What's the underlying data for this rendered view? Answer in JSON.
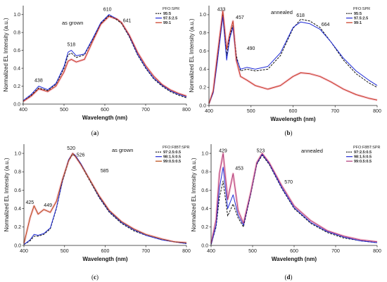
{
  "chart_data": [
    {
      "type": "line",
      "panel": "(a)",
      "condition": "as grown",
      "xlabel": "Wavelength (nm)",
      "ylabel": "Normalized EL Intensity (a.u.)",
      "xlim": [
        400,
        800
      ],
      "ylim": [
        0,
        1.1
      ],
      "xticks": [
        400,
        500,
        600,
        700,
        800
      ],
      "yticks": [
        0.0,
        0.2,
        0.4,
        0.6,
        0.8,
        1.0
      ],
      "legend": {
        "title": "PFO:SPR",
        "position": "top-right",
        "entries": [
          "95:5",
          "97.5:2.5",
          "99:1"
        ]
      },
      "annotations": [
        {
          "text": "438",
          "x": 438,
          "y": 0.2
        },
        {
          "text": "518",
          "x": 518,
          "y": 0.6
        },
        {
          "text": "610",
          "x": 610,
          "y": 1.0
        },
        {
          "text": "641",
          "x": 641,
          "y": 0.9
        }
      ],
      "series": [
        {
          "name": "95:5",
          "color": "#111111",
          "dash": "3,1.5",
          "x": [
            400,
            420,
            438,
            460,
            480,
            500,
            510,
            518,
            530,
            550,
            570,
            590,
            610,
            630,
            641,
            660,
            680,
            700,
            720,
            740,
            760,
            780,
            800
          ],
          "y": [
            0.03,
            0.1,
            0.18,
            0.15,
            0.22,
            0.4,
            0.55,
            0.57,
            0.52,
            0.55,
            0.72,
            0.9,
            0.99,
            0.94,
            0.9,
            0.75,
            0.55,
            0.4,
            0.28,
            0.2,
            0.14,
            0.1,
            0.07
          ]
        },
        {
          "name": "97.5:2.5",
          "color": "#1f2bd6",
          "dash": "",
          "x": [
            400,
            420,
            438,
            460,
            480,
            500,
            510,
            518,
            530,
            550,
            570,
            590,
            610,
            630,
            641,
            660,
            680,
            700,
            720,
            740,
            760,
            780,
            800
          ],
          "y": [
            0.04,
            0.11,
            0.2,
            0.16,
            0.23,
            0.42,
            0.58,
            0.6,
            0.54,
            0.56,
            0.73,
            0.91,
            1.0,
            0.95,
            0.91,
            0.76,
            0.56,
            0.41,
            0.29,
            0.21,
            0.15,
            0.11,
            0.08
          ]
        },
        {
          "name": "99:1",
          "color": "#c8361e",
          "dash": "",
          "x": [
            400,
            420,
            438,
            460,
            480,
            500,
            510,
            518,
            530,
            550,
            570,
            590,
            610,
            630,
            641,
            660,
            680,
            700,
            720,
            740,
            760,
            780,
            800
          ],
          "y": [
            0.03,
            0.09,
            0.17,
            0.14,
            0.2,
            0.36,
            0.48,
            0.5,
            0.47,
            0.5,
            0.7,
            0.89,
            0.98,
            0.95,
            0.91,
            0.77,
            0.58,
            0.43,
            0.31,
            0.22,
            0.16,
            0.12,
            0.09
          ]
        }
      ]
    },
    {
      "type": "line",
      "panel": "(b)",
      "condition": "annealed",
      "xlabel": "Wavelength (nm)",
      "ylabel": "Normalized EL Intensity (a.u.)",
      "xlim": [
        400,
        800
      ],
      "ylim": [
        0,
        1.1
      ],
      "xticks": [
        400,
        500,
        600,
        700,
        800
      ],
      "yticks": [
        0.0,
        0.2,
        0.4,
        0.6,
        0.8,
        1.0
      ],
      "legend": {
        "title": "PFO:SPR",
        "position": "top-right",
        "entries": [
          "95:5",
          "97.5:2.5",
          "99:1"
        ]
      },
      "annotations": [
        {
          "text": "433",
          "x": 433,
          "y": 1.02
        },
        {
          "text": "457",
          "x": 457,
          "y": 0.92
        },
        {
          "text": "490",
          "x": 490,
          "y": 0.55
        },
        {
          "text": "618",
          "x": 618,
          "y": 0.93
        },
        {
          "text": "664",
          "x": 664,
          "y": 0.86
        }
      ],
      "series": [
        {
          "name": "95:5",
          "color": "#111111",
          "dash": "3,1.5",
          "x": [
            400,
            410,
            420,
            433,
            442,
            450,
            457,
            465,
            475,
            490,
            510,
            540,
            570,
            600,
            618,
            640,
            664,
            690,
            720,
            750,
            780,
            800
          ],
          "y": [
            0.02,
            0.15,
            0.5,
            1.0,
            0.55,
            0.78,
            0.88,
            0.55,
            0.38,
            0.4,
            0.38,
            0.4,
            0.55,
            0.85,
            0.95,
            0.93,
            0.86,
            0.7,
            0.5,
            0.35,
            0.25,
            0.2
          ]
        },
        {
          "name": "97.5:2.5",
          "color": "#1f2bd6",
          "dash": "",
          "x": [
            400,
            410,
            420,
            433,
            442,
            450,
            457,
            465,
            475,
            490,
            510,
            540,
            570,
            600,
            618,
            640,
            664,
            690,
            720,
            750,
            780,
            800
          ],
          "y": [
            0.02,
            0.14,
            0.48,
            0.98,
            0.5,
            0.75,
            0.86,
            0.52,
            0.4,
            0.42,
            0.4,
            0.43,
            0.58,
            0.86,
            0.92,
            0.9,
            0.84,
            0.7,
            0.52,
            0.38,
            0.28,
            0.22
          ]
        },
        {
          "name": "99:1",
          "color": "#c8361e",
          "dash": "",
          "x": [
            400,
            410,
            420,
            433,
            442,
            450,
            457,
            465,
            475,
            490,
            510,
            540,
            570,
            600,
            618,
            640,
            664,
            690,
            720,
            750,
            780,
            800
          ],
          "y": [
            0.02,
            0.16,
            0.55,
            1.04,
            0.62,
            0.8,
            0.93,
            0.5,
            0.32,
            0.28,
            0.22,
            0.18,
            0.22,
            0.32,
            0.36,
            0.35,
            0.32,
            0.26,
            0.18,
            0.12,
            0.08,
            0.06
          ]
        }
      ]
    },
    {
      "type": "line",
      "panel": "(c)",
      "condition": "as grown",
      "xlabel": "Wavelength (nm)",
      "ylabel": "Normalized EL Intensity (a.u.)",
      "xlim": [
        400,
        800
      ],
      "ylim": [
        0,
        1.1
      ],
      "xticks": [
        400,
        500,
        600,
        700,
        800
      ],
      "yticks": [
        0.0,
        0.2,
        0.4,
        0.6,
        0.8,
        1.0
      ],
      "legend": {
        "title": "PFO:F8BT:SPR",
        "position": "top-right",
        "entries": [
          "97:2.5:0.5",
          "98:1.5:0.5",
          "99:0.5:0.5"
        ]
      },
      "annotations": [
        {
          "text": "425",
          "x": 425,
          "y": 0.42
        },
        {
          "text": "449",
          "x": 449,
          "y": 0.39
        },
        {
          "text": "520",
          "x": 520,
          "y": 1.0
        },
        {
          "text": "526",
          "x": 526,
          "y": 0.95
        },
        {
          "text": "585",
          "x": 585,
          "y": 0.78
        }
      ],
      "series": [
        {
          "name": "97:2.5:0.5",
          "color": "#111111",
          "dash": "3,1.5",
          "x": [
            400,
            415,
            425,
            435,
            449,
            465,
            480,
            495,
            510,
            520,
            526,
            540,
            560,
            585,
            610,
            640,
            670,
            700,
            740,
            770,
            800
          ],
          "y": [
            0.01,
            0.05,
            0.1,
            0.1,
            0.12,
            0.18,
            0.4,
            0.7,
            0.92,
            0.99,
            0.97,
            0.88,
            0.72,
            0.52,
            0.36,
            0.24,
            0.16,
            0.11,
            0.06,
            0.04,
            0.02
          ]
        },
        {
          "name": "98:1.5:0.5",
          "color": "#1f2bd6",
          "dash": "",
          "x": [
            400,
            415,
            425,
            435,
            449,
            465,
            480,
            495,
            510,
            520,
            526,
            540,
            560,
            585,
            610,
            640,
            670,
            700,
            740,
            770,
            800
          ],
          "y": [
            0.01,
            0.06,
            0.12,
            0.11,
            0.13,
            0.19,
            0.41,
            0.71,
            0.93,
            1.0,
            0.98,
            0.89,
            0.73,
            0.53,
            0.37,
            0.25,
            0.17,
            0.11,
            0.06,
            0.04,
            0.02
          ]
        },
        {
          "name": "99:0.5:0.5",
          "color": "#b8470f",
          "dash": "",
          "x": [
            400,
            415,
            425,
            435,
            449,
            465,
            480,
            495,
            510,
            520,
            526,
            540,
            560,
            585,
            610,
            640,
            670,
            700,
            740,
            770,
            800
          ],
          "y": [
            0.02,
            0.3,
            0.43,
            0.34,
            0.39,
            0.36,
            0.48,
            0.72,
            0.92,
            1.0,
            0.97,
            0.88,
            0.73,
            0.54,
            0.38,
            0.26,
            0.18,
            0.12,
            0.07,
            0.04,
            0.03
          ]
        }
      ]
    },
    {
      "type": "line",
      "panel": "(d)",
      "condition": "annealed",
      "xlabel": "Wavelength (nm)",
      "ylabel": "Normalized EL Intensity (a.u.)",
      "xlim": [
        400,
        800
      ],
      "ylim": [
        0,
        1.1
      ],
      "xticks": [
        400,
        500,
        600,
        700,
        800
      ],
      "yticks": [
        0.0,
        0.2,
        0.4,
        0.6,
        0.8,
        1.0
      ],
      "legend": {
        "title": "PFO:F8BT:SPR",
        "position": "top-right",
        "entries": [
          "97:2.5:0.5",
          "98:1.5:0.5",
          "99:0.5:0.5"
        ]
      },
      "annotations": [
        {
          "text": "429",
          "x": 429,
          "y": 0.99
        },
        {
          "text": "453",
          "x": 453,
          "y": 0.8
        },
        {
          "text": "523",
          "x": 523,
          "y": 0.99
        },
        {
          "text": "570",
          "x": 570,
          "y": 0.65
        }
      ],
      "series": [
        {
          "name": "97:2.5:0.5",
          "color": "#111111",
          "dash": "3,1.5",
          "x": [
            400,
            412,
            420,
            429,
            440,
            453,
            465,
            478,
            495,
            510,
            523,
            540,
            570,
            600,
            640,
            680,
            720,
            760,
            800
          ],
          "y": [
            0.01,
            0.2,
            0.52,
            0.7,
            0.32,
            0.45,
            0.3,
            0.2,
            0.55,
            0.88,
            0.98,
            0.88,
            0.62,
            0.4,
            0.24,
            0.14,
            0.08,
            0.05,
            0.03
          ]
        },
        {
          "name": "98:1.5:0.5",
          "color": "#1f2bd6",
          "dash": "",
          "x": [
            400,
            412,
            420,
            429,
            440,
            453,
            465,
            478,
            495,
            510,
            523,
            540,
            570,
            600,
            640,
            680,
            720,
            760,
            800
          ],
          "y": [
            0.01,
            0.22,
            0.62,
            0.85,
            0.4,
            0.55,
            0.33,
            0.22,
            0.56,
            0.89,
            0.99,
            0.89,
            0.63,
            0.41,
            0.25,
            0.15,
            0.09,
            0.05,
            0.03
          ]
        },
        {
          "name": "99:0.5:0.5",
          "color": "#b03a7a",
          "dash": "",
          "x": [
            400,
            412,
            420,
            429,
            440,
            453,
            465,
            478,
            495,
            510,
            523,
            540,
            570,
            600,
            640,
            680,
            720,
            760,
            800
          ],
          "y": [
            0.02,
            0.28,
            0.78,
            1.0,
            0.5,
            0.78,
            0.38,
            0.24,
            0.57,
            0.9,
            1.0,
            0.9,
            0.65,
            0.43,
            0.27,
            0.16,
            0.1,
            0.06,
            0.04
          ]
        }
      ]
    }
  ]
}
